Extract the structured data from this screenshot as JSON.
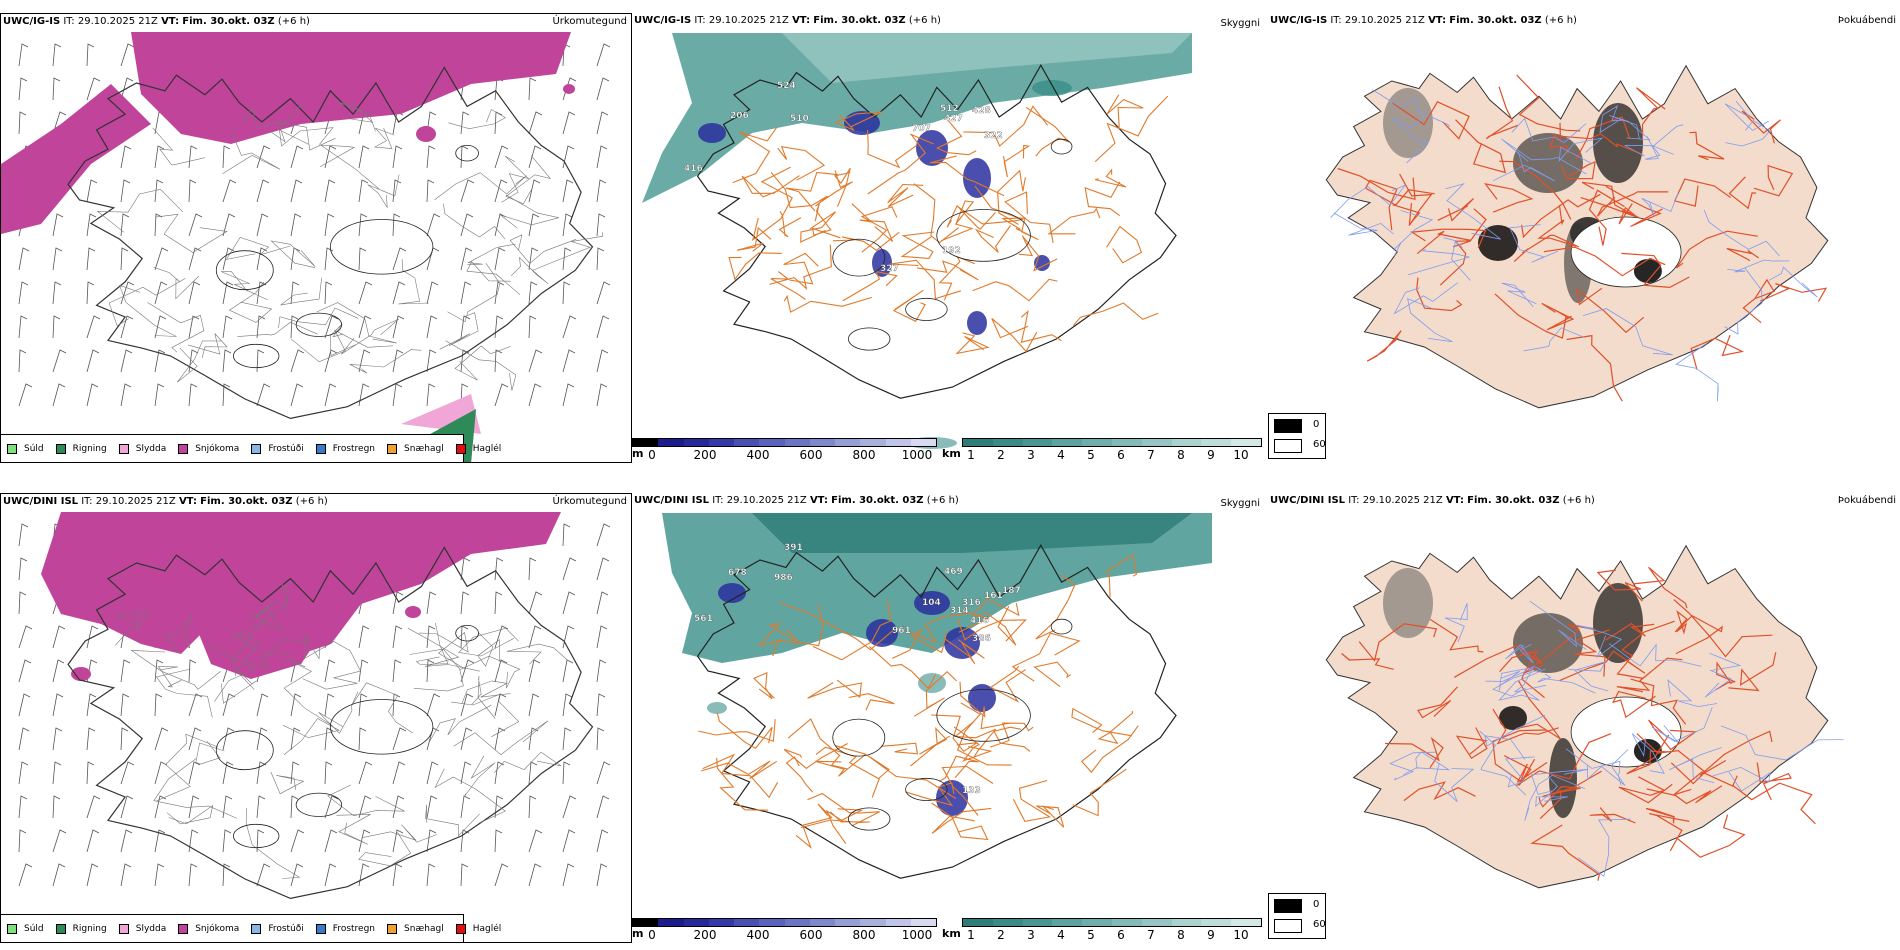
{
  "rows": [
    {
      "left": {
        "model": "UWC/IG-IS",
        "it_label": "IT:",
        "it": "29.10.2025 21Z",
        "vt_label": "VT:",
        "vt": "Fim. 30.okt. 03Z",
        "lead": "(+6 h)",
        "title": "Úrkomutegund"
      },
      "mid": {
        "model": "UWC/IG-IS",
        "it_label": "IT:",
        "it": "29.10.2025 21Z",
        "vt_label": "VT:",
        "vt": "Fim. 30.okt. 03Z",
        "lead": "(+6 h)",
        "title": "Skyggni",
        "labels": [
          "524",
          "206",
          "510",
          "707",
          "512",
          "427",
          "428",
          "322",
          "416",
          "327",
          "192"
        ]
      },
      "right": {
        "model": "UWC/IG-IS",
        "it_label": "IT:",
        "it": "29.10.2025 21Z",
        "vt_label": "VT:",
        "vt": "Fim. 30.okt. 03Z",
        "lead": "(+6 h)",
        "title": "Þokuábendi"
      }
    },
    {
      "left": {
        "model": "UWC/DINI ISL",
        "it_label": "IT:",
        "it": "29.10.2025 21Z",
        "vt_label": "VT:",
        "vt": "Fim. 30.okt. 03Z",
        "lead": "(+6 h)",
        "title": "Úrkomutegund"
      },
      "mid": {
        "model": "UWC/DINI ISL",
        "it_label": "IT:",
        "it": "29.10.2025 21Z",
        "vt_label": "VT:",
        "vt": "Fim. 30.okt. 03Z",
        "lead": "(+6 h)",
        "title": "Skyggni",
        "labels": [
          "391",
          "678",
          "986",
          "561",
          "469",
          "161",
          "104",
          "316",
          "314",
          "416",
          "386",
          "961",
          "187",
          "133"
        ]
      },
      "right": {
        "model": "UWC/DINI ISL",
        "it_label": "IT:",
        "it": "29.10.2025 21Z",
        "vt_label": "VT:",
        "vt": "Fim. 30.okt. 03Z",
        "lead": "(+6 h)",
        "title": "Þokuábendi"
      }
    }
  ],
  "precip_legend": [
    {
      "label": "Súld",
      "color": "#7fe07f"
    },
    {
      "label": "Rigning",
      "color": "#2e8b57"
    },
    {
      "label": "Slydda",
      "color": "#f0a6d6"
    },
    {
      "label": "Snjókoma",
      "color": "#c0449a"
    },
    {
      "label": "Frostúði",
      "color": "#87b6ea"
    },
    {
      "label": "Frostregn",
      "color": "#3b7ac6"
    },
    {
      "label": "Snæhagl",
      "color": "#f0a030"
    },
    {
      "label": "Haglél",
      "color": "#e01010"
    }
  ],
  "ceiling_scale": {
    "unit": "m",
    "ticks": [
      "0",
      "200",
      "400",
      "600",
      "800",
      "1000"
    ],
    "colors": [
      "#000000",
      "#1c1c8a",
      "#26289c",
      "#3438a8",
      "#4a50b2",
      "#5a62bc",
      "#6c74c4",
      "#8088cc",
      "#969ed6",
      "#aab0de",
      "#c0c4e8",
      "#d8daf2"
    ]
  },
  "visibility_scale": {
    "unit": "km",
    "ticks": [
      "1",
      "2",
      "3",
      "4",
      "5",
      "6",
      "7",
      "8",
      "9",
      "10"
    ],
    "colors": [
      "#2e7d78",
      "#3a8a85",
      "#4a9692",
      "#5ca29e",
      "#6eaeab",
      "#82bab7",
      "#96c6c3",
      "#aad2cf",
      "#bedcda",
      "#d4e8e6"
    ]
  },
  "fog_key": {
    "values": [
      "0",
      "60"
    ],
    "colors": [
      "#000000",
      "#ffffff"
    ]
  },
  "colors": {
    "snow": "#c0449a",
    "rain": "#2e8b57",
    "sleet": "#f0a6d6",
    "vis": "#3a8f88",
    "ceiling": "#2a2f9e",
    "land": "#f3dccb",
    "roads": "#e07a2a",
    "roads_right": "#e0502a",
    "rivers": "#7f9cf0"
  }
}
